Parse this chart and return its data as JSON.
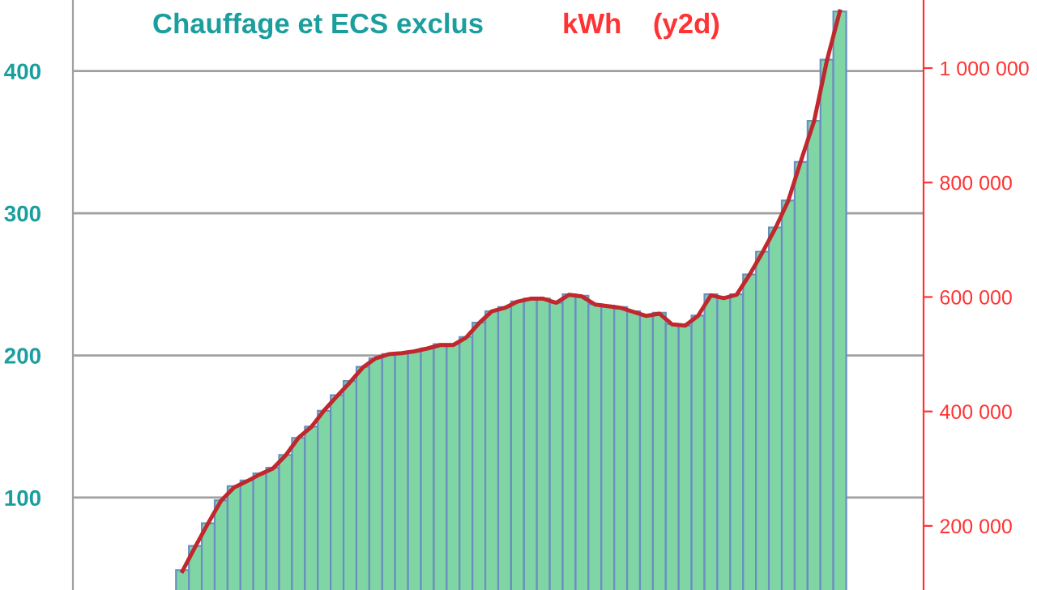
{
  "chart_data": {
    "type": "bar",
    "title": "Chauffage et ECS exclus",
    "y2label": "kWh    (y2d)",
    "categories": [
      null,
      null,
      null,
      null,
      null,
      null,
      null,
      null,
      null,
      null,
      null,
      null,
      null,
      null,
      null,
      null,
      null,
      null,
      null,
      null,
      null,
      null,
      null,
      null,
      null,
      null,
      null,
      null,
      null,
      null,
      null,
      null,
      null,
      null,
      null,
      null,
      null,
      null,
      null,
      null,
      null,
      null,
      null,
      null,
      null,
      null,
      null,
      null,
      null,
      null,
      null,
      null,
      null,
      null,
      null,
      null,
      null,
      null,
      null,
      null,
      null,
      null,
      null,
      null,
      null,
      null
    ],
    "series": [
      {
        "color": "#7fd6a4",
        "values": [
          null,
          null,
          null,
          null,
          null,
          null,
          null,
          null,
          49,
          66,
          82,
          98,
          108,
          112,
          117,
          121,
          130,
          142,
          150,
          161,
          172,
          182,
          192,
          198,
          201,
          202,
          203,
          205,
          208,
          208,
          213,
          223,
          231,
          234,
          238,
          240,
          240,
          237,
          243,
          242,
          236,
          235,
          234,
          231,
          228,
          230,
          222,
          221,
          228,
          243,
          241,
          243,
          257,
          273,
          290,
          309,
          336,
          365,
          408,
          442,
          null,
          null,
          null,
          null,
          null,
          null
        ]
      },
      {
        "type": "line",
        "axis": "y2",
        "color": "#c0282d",
        "values": [
          null,
          null,
          null,
          null,
          null,
          null,
          null,
          null,
          121000,
          164000,
          205000,
          244000,
          267000,
          278000,
          290000,
          300000,
          323000,
          354000,
          373000,
          402000,
          427000,
          451000,
          477000,
          493000,
          500000,
          502000,
          505000,
          510000,
          516000,
          516000,
          529000,
          554000,
          575000,
          581000,
          592000,
          597000,
          597000,
          590000,
          604000,
          601000,
          587000,
          584000,
          581000,
          574000,
          567000,
          571000,
          552000,
          550000,
          567000,
          603000,
          598000,
          604000,
          639000,
          678000,
          720000,
          768000,
          839000,
          907000,
          1013000,
          1099000,
          null,
          null,
          null,
          null,
          null,
          null
        ]
      }
    ],
    "ylim": [
      35,
      450
    ],
    "yticks": [
      100,
      200,
      300,
      400
    ],
    "y2lim": [
      88000,
      1119000
    ],
    "y2ticks": [
      {
        "value": 200000,
        "label": "200 000"
      },
      {
        "value": 400000,
        "label": "400 000"
      },
      {
        "value": 600000,
        "label": "600 000"
      },
      {
        "value": 800000,
        "label": "800 000"
      },
      {
        "value": 1000000,
        "label": "1 000 000"
      }
    ],
    "grid": "y"
  }
}
